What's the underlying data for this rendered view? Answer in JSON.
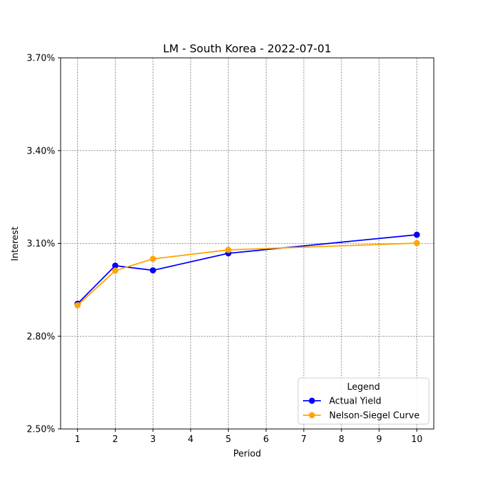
{
  "chart_data": {
    "type": "line",
    "title": "LM - South Korea - 2022-07-01",
    "xlabel": "Period",
    "ylabel": "Interest",
    "xlim": [
      0.55,
      10.45
    ],
    "ylim": [
      2.5,
      3.7
    ],
    "x_ticks": [
      1,
      2,
      3,
      4,
      5,
      6,
      7,
      8,
      9,
      10
    ],
    "x_tick_labels": [
      "1",
      "2",
      "3",
      "4",
      "5",
      "6",
      "7",
      "8",
      "9",
      "10"
    ],
    "y_ticks": [
      2.5,
      2.8,
      3.1,
      3.4,
      3.7
    ],
    "y_tick_labels": [
      "2.50%",
      "2.80%",
      "3.10%",
      "3.40%",
      "3.70%"
    ],
    "grid": true,
    "legend": {
      "title": "Legend",
      "placement": "lower-right"
    },
    "series": [
      {
        "name": "Actual Yield",
        "color": "#0000ff",
        "marker": "circle",
        "x": [
          1,
          2,
          3,
          5,
          10
        ],
        "y": [
          2.905,
          3.028,
          3.013,
          3.068,
          3.128
        ]
      },
      {
        "name": "Nelson-Siegel Curve",
        "color": "#ffa500",
        "marker": "circle",
        "x": [
          1,
          2,
          3,
          5,
          10
        ],
        "y": [
          2.9,
          3.012,
          3.05,
          3.079,
          3.101
        ]
      }
    ]
  }
}
